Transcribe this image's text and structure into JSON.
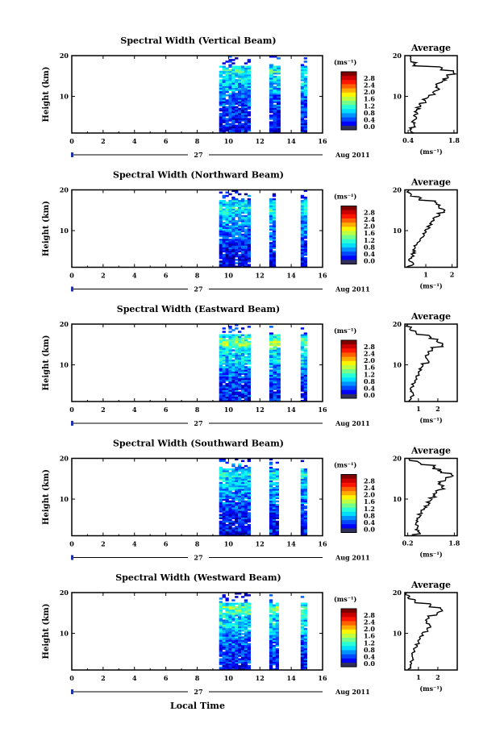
{
  "figure": {
    "xlabel": "Local Time",
    "date_center": "27",
    "date_right": "Aug 2011",
    "ylabel": "Height (km)",
    "unit": "(ms⁻¹)",
    "avg_title": "Average",
    "avg_unit": "(ms⁻¹)",
    "x_ticks": [
      "0",
      "2",
      "4",
      "6",
      "8",
      "10",
      "12",
      "14",
      "16"
    ],
    "y_ticks": [
      "20",
      "10"
    ],
    "colorbar_ticks": [
      "2.8",
      "2.4",
      "2.0",
      "1.6",
      "1.2",
      "0.8",
      "0.4",
      "0.0"
    ]
  },
  "chart_data": [
    {
      "type": "heatmap",
      "title": "Spectral Width (Vertical Beam)",
      "xlabel": "Local Time",
      "ylabel": "Height (km)",
      "xlim": [
        0,
        16
      ],
      "ylim": [
        1,
        20
      ],
      "colorbar": {
        "label": "(ms⁻¹)",
        "range": [
          0.0,
          2.8
        ]
      },
      "data_intervals_local_time": [
        [
          9.4,
          11.4
        ],
        [
          12.6,
          13.3
        ],
        [
          14.6,
          15.0
        ]
      ],
      "average_profile": {
        "title": "Average",
        "xlabel": "(ms⁻¹)",
        "xticks": [
          "0.4",
          "1.8"
        ],
        "xlim": [
          0.3,
          1.9
        ],
        "ylim": [
          1,
          20
        ],
        "height_km": [
          1,
          2,
          3,
          4,
          5,
          6,
          7,
          8,
          9,
          10,
          11,
          12,
          13,
          14,
          15,
          16,
          17,
          18,
          19,
          20
        ],
        "value": [
          0.55,
          0.5,
          0.6,
          0.55,
          0.6,
          0.65,
          0.7,
          0.8,
          0.9,
          1.0,
          1.2,
          1.3,
          1.3,
          1.5,
          1.6,
          1.8,
          1.4,
          0.6,
          0.5,
          0.45
        ]
      }
    },
    {
      "type": "heatmap",
      "title": "Spectral Width (Northward Beam)",
      "xlabel": "Local Time",
      "ylabel": "Height (km)",
      "xlim": [
        0,
        16
      ],
      "ylim": [
        1,
        20
      ],
      "colorbar": {
        "label": "(ms⁻¹)",
        "range": [
          0.0,
          2.8
        ]
      },
      "data_intervals_local_time": [
        [
          9.4,
          11.4
        ],
        [
          12.6,
          13.0
        ],
        [
          14.6,
          15.0
        ]
      ],
      "average_profile": {
        "title": "Average",
        "xlabel": "(ms⁻¹)",
        "xticks": [
          "1",
          "2"
        ],
        "xlim": [
          0.2,
          2.2
        ],
        "ylim": [
          1,
          20
        ],
        "height_km": [
          1,
          2,
          3,
          4,
          5,
          6,
          7,
          8,
          9,
          10,
          11,
          12,
          13,
          14,
          15,
          16,
          17,
          18,
          19,
          20
        ],
        "value": [
          0.3,
          0.5,
          0.4,
          0.5,
          0.55,
          0.6,
          0.7,
          0.8,
          0.9,
          1.0,
          1.1,
          1.2,
          1.3,
          1.5,
          1.7,
          1.5,
          1.4,
          0.8,
          0.4,
          0.3
        ]
      }
    },
    {
      "type": "heatmap",
      "title": "Spectral Width (Eastward Beam)",
      "xlabel": "Local Time",
      "ylabel": "Height (km)",
      "xlim": [
        0,
        16
      ],
      "ylim": [
        1,
        20
      ],
      "colorbar": {
        "label": "(ms⁻¹)",
        "range": [
          0.0,
          2.8
        ]
      },
      "data_intervals_local_time": [
        [
          9.4,
          11.4
        ],
        [
          12.6,
          13.3
        ],
        [
          14.6,
          15.0
        ]
      ],
      "average_profile": {
        "title": "Average",
        "xlabel": "(ms⁻¹)",
        "xticks": [
          "1",
          "2"
        ],
        "xlim": [
          0.3,
          3.0
        ],
        "ylim": [
          1,
          20
        ],
        "height_km": [
          1,
          2,
          3,
          4,
          5,
          6,
          7,
          8,
          9,
          10,
          11,
          12,
          13,
          14,
          15,
          16,
          17,
          18,
          19,
          20
        ],
        "value": [
          0.5,
          0.6,
          0.7,
          0.6,
          0.7,
          0.8,
          0.9,
          1.0,
          1.1,
          1.2,
          1.5,
          1.4,
          1.5,
          1.7,
          2.2,
          2.0,
          1.6,
          0.9,
          0.6,
          0.4
        ]
      }
    },
    {
      "type": "heatmap",
      "title": "Spectral Width (Southward Beam)",
      "xlabel": "Local Time",
      "ylabel": "Height (km)",
      "xlim": [
        0,
        16
      ],
      "ylim": [
        1,
        20
      ],
      "colorbar": {
        "label": "(ms⁻¹)",
        "range": [
          0.0,
          2.8
        ]
      },
      "data_intervals_local_time": [
        [
          9.4,
          11.4
        ],
        [
          12.6,
          13.2
        ],
        [
          14.6,
          15.0
        ]
      ],
      "average_profile": {
        "title": "Average",
        "xlabel": "(ms⁻¹)",
        "xticks": [
          "0.2",
          "1.8"
        ],
        "xlim": [
          0.1,
          1.9
        ],
        "ylim": [
          1,
          20
        ],
        "height_km": [
          1,
          2,
          3,
          4,
          5,
          6,
          7,
          8,
          9,
          10,
          11,
          12,
          13,
          14,
          15,
          16,
          17,
          18,
          19,
          20
        ],
        "value": [
          0.4,
          0.6,
          0.5,
          0.5,
          0.55,
          0.6,
          0.7,
          0.8,
          0.9,
          1.0,
          1.1,
          1.2,
          1.4,
          1.3,
          1.5,
          1.7,
          1.3,
          1.1,
          0.6,
          0.3
        ]
      }
    },
    {
      "type": "heatmap",
      "title": "Spectral Width (Westward Beam)",
      "xlabel": "Local Time",
      "ylabel": "Height (km)",
      "xlim": [
        0,
        16
      ],
      "ylim": [
        1,
        20
      ],
      "colorbar": {
        "label": "(ms⁻¹)",
        "range": [
          0.0,
          2.8
        ]
      },
      "data_intervals_local_time": [
        [
          9.4,
          11.4
        ],
        [
          12.6,
          13.2
        ],
        [
          14.6,
          15.0
        ]
      ],
      "average_profile": {
        "title": "Average",
        "xlabel": "(ms⁻¹)",
        "xticks": [
          "1",
          "2"
        ],
        "xlim": [
          0.3,
          3.0
        ],
        "ylim": [
          1,
          20
        ],
        "height_km": [
          1,
          2,
          3,
          4,
          5,
          6,
          7,
          8,
          9,
          10,
          11,
          12,
          13,
          14,
          15,
          16,
          17,
          18,
          19,
          20
        ],
        "value": [
          0.5,
          0.6,
          0.6,
          0.7,
          0.7,
          0.8,
          0.9,
          1.0,
          1.1,
          1.2,
          1.5,
          1.6,
          1.4,
          1.5,
          2.0,
          2.2,
          1.6,
          0.8,
          0.5,
          0.4
        ]
      }
    }
  ]
}
